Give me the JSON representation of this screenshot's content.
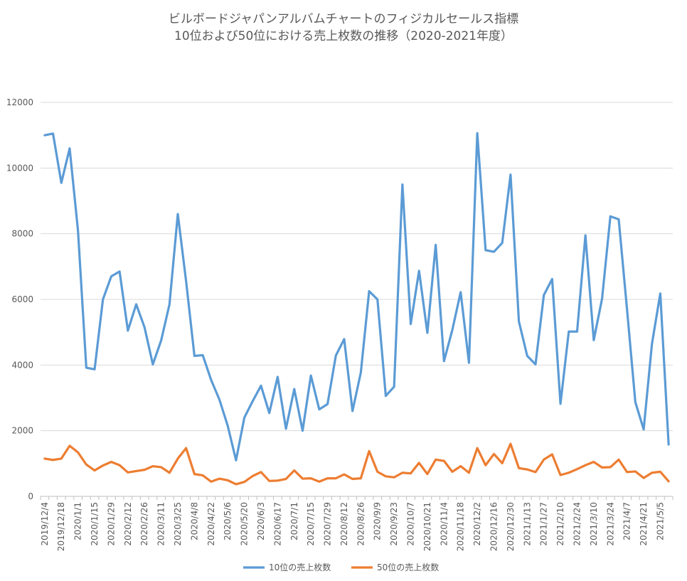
{
  "chart_data": {
    "type": "line",
    "title": "ビルボードジャパンアルバムチャートのフィジカルセールス指標",
    "subtitle": "10位および50位における売上枚数の推移（2020-2021年度）",
    "xlabel": "",
    "ylabel": "",
    "ylim": [
      0,
      12000
    ],
    "yticks": [
      0,
      2000,
      4000,
      6000,
      8000,
      10000,
      12000
    ],
    "grid": true,
    "legend_position": "bottom",
    "x_tick_labels": [
      "2019/12/4",
      "2019/12/18",
      "2020/1/1",
      "2020/1/15",
      "2020/1/29",
      "2020/2/12",
      "2020/2/26",
      "2020/3/11",
      "2020/3/25",
      "2020/4/8",
      "2020/4/22",
      "2020/5/6",
      "2020/5/20",
      "2020/6/3",
      "2020/6/17",
      "2020/7/1",
      "2020/7/15",
      "2020/7/29",
      "2020/8/12",
      "2020/8/26",
      "2020/9/9",
      "2020/9/23",
      "2020/10/7",
      "2020/10/21",
      "2020/11/4",
      "2020/11/18",
      "2020/12/2",
      "2020/12/16",
      "2020/12/30",
      "2021/1/13",
      "2021/1/27",
      "2021/2/10",
      "2021/2/24",
      "2021/3/10",
      "2021/3/24",
      "2021/4/7",
      "2021/4/21",
      "2021/5/5"
    ],
    "series": [
      {
        "name": "10位の売上枚数",
        "color": "#5B9BD5",
        "values": [
          11000,
          11050,
          9550,
          10600,
          8100,
          3920,
          3870,
          6000,
          6700,
          6850,
          5050,
          5850,
          5150,
          4020,
          4750,
          5850,
          8600,
          6550,
          4280,
          4300,
          3550,
          2950,
          2150,
          1100,
          2400,
          2900,
          3370,
          2540,
          3640,
          2060,
          3270,
          2000,
          3680,
          2650,
          2810,
          4290,
          4790,
          2600,
          3770,
          6250,
          6000,
          3060,
          3340,
          9500,
          5250,
          6870,
          4980,
          7660,
          4120,
          5070,
          6220,
          4070,
          11060,
          7500,
          7450,
          7720,
          9800,
          5330,
          4280,
          4020,
          6130,
          6620,
          2820,
          5020,
          5020,
          7950,
          4760,
          6020,
          8530,
          8440,
          5700,
          2870,
          2040,
          4650,
          6180,
          1580
        ]
      },
      {
        "name": "50位の売上枚数",
        "color": "#ED7D31",
        "values": [
          1150,
          1110,
          1150,
          1540,
          1340,
          970,
          790,
          940,
          1050,
          950,
          730,
          770,
          810,
          920,
          890,
          720,
          1150,
          1470,
          680,
          640,
          450,
          540,
          490,
          370,
          440,
          620,
          740,
          470,
          480,
          530,
          790,
          540,
          550,
          450,
          550,
          550,
          670,
          530,
          550,
          1380,
          750,
          610,
          580,
          720,
          700,
          1020,
          680,
          1120,
          1080,
          750,
          920,
          720,
          1470,
          950,
          1290,
          1010,
          1600,
          860,
          820,
          740,
          1120,
          1280,
          650,
          720,
          830,
          950,
          1050,
          880,
          890,
          1120,
          740,
          760,
          560,
          720,
          750,
          460
        ]
      }
    ]
  }
}
